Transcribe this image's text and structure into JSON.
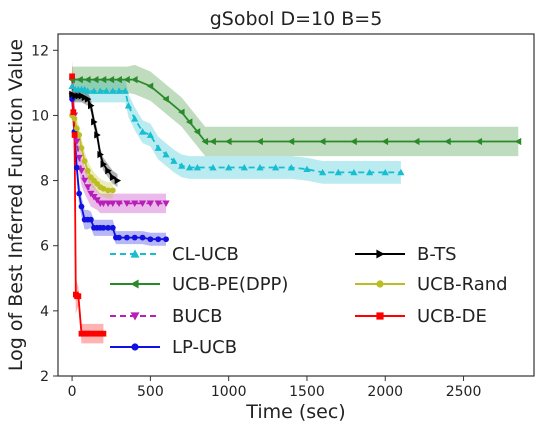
{
  "chart_data": {
    "type": "line",
    "title": "gSobol D=10 B=5",
    "xlabel": "Time (sec)",
    "ylabel": "Log of Best Inferred Function Value",
    "xlim": [
      -90,
      2950
    ],
    "ylim": [
      2,
      12.5
    ],
    "xticks": [
      0,
      500,
      1000,
      1500,
      2000,
      2500
    ],
    "yticks": [
      2,
      4,
      6,
      8,
      10,
      12
    ],
    "grid": false,
    "legend_position": "lower-center, two columns",
    "series": [
      {
        "name": "CL-UCB",
        "color": "#17becf",
        "marker": "triangle-up",
        "dash": "6,4",
        "x": [
          0,
          20,
          40,
          60,
          80,
          100,
          140,
          180,
          220,
          260,
          300,
          340,
          360,
          400,
          450,
          500,
          550,
          600,
          650,
          700,
          750,
          800,
          900,
          1000,
          1100,
          1200,
          1300,
          1400,
          1500,
          1600,
          1700,
          1800,
          1900,
          2000,
          2100
        ],
        "y": [
          10.9,
          10.8,
          10.8,
          10.8,
          10.8,
          10.75,
          10.75,
          10.75,
          10.75,
          10.75,
          10.75,
          10.75,
          10.3,
          9.9,
          9.5,
          9.4,
          9.0,
          8.8,
          8.6,
          8.45,
          8.4,
          8.4,
          8.4,
          8.4,
          8.4,
          8.4,
          8.4,
          8.4,
          8.35,
          8.25,
          8.25,
          8.25,
          8.25,
          8.25,
          8.25
        ],
        "band": [
          0.35,
          0.35,
          0.35,
          0.35,
          0.35,
          0.35,
          0.35,
          0.35,
          0.35,
          0.35,
          0.35,
          0.35,
          0.35,
          0.35,
          0.35,
          0.35,
          0.35,
          0.35,
          0.35,
          0.35,
          0.35,
          0.35,
          0.35,
          0.35,
          0.35,
          0.35,
          0.35,
          0.35,
          0.35,
          0.35,
          0.35,
          0.35,
          0.35,
          0.35,
          0.35
        ]
      },
      {
        "name": "UCB-PE(DPP)",
        "color": "#2a8a2a",
        "marker": "triangle-left",
        "dash": "",
        "x": [
          0,
          50,
          100,
          150,
          200,
          250,
          300,
          350,
          400,
          500,
          600,
          700,
          750,
          800,
          850,
          900,
          1000,
          1200,
          1400,
          1600,
          1800,
          2000,
          2200,
          2400,
          2600,
          2850
        ],
        "y": [
          11.1,
          11.1,
          11.1,
          11.1,
          11.1,
          11.1,
          11.1,
          11.1,
          11.1,
          10.9,
          10.5,
          10.1,
          9.8,
          9.5,
          9.2,
          9.2,
          9.2,
          9.2,
          9.2,
          9.2,
          9.2,
          9.2,
          9.2,
          9.2,
          9.2,
          9.2
        ],
        "band": [
          0.4,
          0.4,
          0.4,
          0.4,
          0.4,
          0.4,
          0.4,
          0.4,
          0.45,
          0.45,
          0.45,
          0.45,
          0.45,
          0.45,
          0.45,
          0.45,
          0.45,
          0.45,
          0.45,
          0.45,
          0.45,
          0.45,
          0.45,
          0.45,
          0.45,
          0.45
        ]
      },
      {
        "name": "BUCB",
        "color": "#b81fb8",
        "marker": "triangle-down",
        "dash": "6,4",
        "x": [
          0,
          15,
          30,
          45,
          60,
          80,
          100,
          120,
          140,
          160,
          180,
          200,
          230,
          260,
          300,
          350,
          400,
          450,
          500,
          550,
          600
        ],
        "y": [
          10.6,
          10.0,
          9.2,
          8.7,
          8.3,
          8.0,
          7.8,
          7.6,
          7.5,
          7.4,
          7.3,
          7.3,
          7.3,
          7.3,
          7.3,
          7.3,
          7.3,
          7.3,
          7.3,
          7.3,
          7.3
        ],
        "band": [
          0.4,
          0.45,
          0.45,
          0.45,
          0.45,
          0.4,
          0.4,
          0.4,
          0.35,
          0.3,
          0.3,
          0.3,
          0.3,
          0.3,
          0.3,
          0.3,
          0.3,
          0.3,
          0.3,
          0.3,
          0.3
        ]
      },
      {
        "name": "LP-UCB",
        "color": "#1010e0",
        "marker": "circle",
        "dash": "",
        "x": [
          0,
          15,
          30,
          45,
          60,
          80,
          100,
          120,
          140,
          160,
          180,
          200,
          230,
          260,
          280,
          300,
          350,
          400,
          450,
          500,
          550,
          600
        ],
        "y": [
          10.5,
          9.5,
          8.4,
          7.6,
          7.2,
          6.8,
          6.8,
          6.8,
          6.55,
          6.55,
          6.55,
          6.55,
          6.55,
          6.55,
          6.25,
          6.25,
          6.25,
          6.25,
          6.25,
          6.2,
          6.2,
          6.2
        ],
        "band": [
          0.3,
          0.4,
          0.4,
          0.35,
          0.3,
          0.3,
          0.3,
          0.25,
          0.25,
          0.25,
          0.25,
          0.25,
          0.25,
          0.25,
          0.2,
          0.2,
          0.2,
          0.2,
          0.2,
          0.2,
          0.2,
          0.2
        ]
      },
      {
        "name": "B-TS",
        "color": "#000000",
        "marker": "triangle-right",
        "dash": "",
        "x": [
          0,
          20,
          40,
          60,
          80,
          100,
          120,
          140,
          160,
          180,
          200,
          230,
          260,
          290
        ],
        "y": [
          10.65,
          10.6,
          10.6,
          10.6,
          10.55,
          10.5,
          10.3,
          9.8,
          9.4,
          8.8,
          8.5,
          8.3,
          8.1,
          8.0
        ],
        "band": [
          0.2,
          0.2,
          0.2,
          0.2,
          0.2,
          0.2,
          0.2,
          0.2,
          0.2,
          0.2,
          0.2,
          0.2,
          0.2,
          0.2
        ]
      },
      {
        "name": "UCB-Rand",
        "color": "#bcbd22",
        "marker": "circle",
        "dash": "",
        "x": [
          0,
          15,
          30,
          45,
          60,
          80,
          100,
          120,
          140,
          160,
          180,
          200,
          230,
          260
        ],
        "y": [
          10.0,
          9.9,
          9.6,
          9.4,
          9.0,
          8.6,
          8.3,
          8.1,
          8.0,
          7.9,
          7.8,
          7.75,
          7.7,
          7.7
        ],
        "band": [
          0.3,
          0.3,
          0.3,
          0.3,
          0.3,
          0.3,
          0.3,
          0.3,
          0.25,
          0.25,
          0.25,
          0.25,
          0.25,
          0.25
        ]
      },
      {
        "name": "UCB-DE",
        "color": "#ff0000",
        "marker": "square",
        "dash": "",
        "x": [
          0,
          8,
          16,
          24,
          32,
          40,
          60,
          80,
          100,
          120,
          150,
          180,
          200
        ],
        "y": [
          11.2,
          10.1,
          9.4,
          4.5,
          4.45,
          4.45,
          3.3,
          3.3,
          3.3,
          3.3,
          3.3,
          3.3,
          3.3
        ],
        "band": [
          0.5,
          1.0,
          1.3,
          0.6,
          0.4,
          0.3,
          0.3,
          0.3,
          0.3,
          0.3,
          0.3,
          0.3,
          0.3
        ]
      }
    ]
  }
}
